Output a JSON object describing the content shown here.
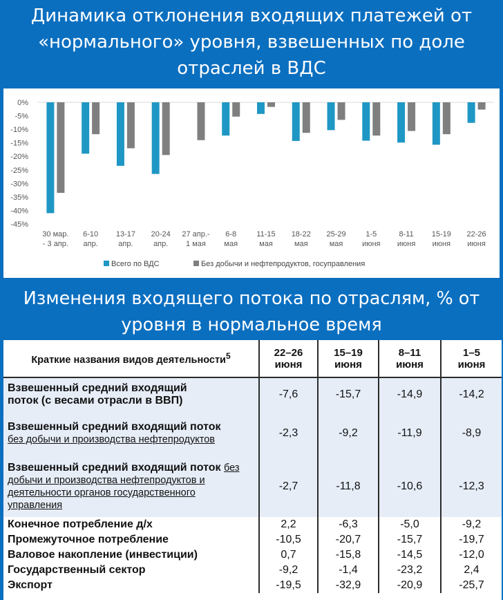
{
  "title1": "Динамика отклонения входящих платежей от «нормального» уровня, взвешенных по доле отраслей в ВДС",
  "title2": "Изменения входящего потока по отраслям, % от уровня в нормальное время",
  "colors": {
    "series1": "#1f97c4",
    "series2": "#7f7f7f",
    "banner": "#0b6fc0",
    "row_shade": "#e6edf7"
  },
  "chart_data": {
    "type": "bar",
    "categories": [
      [
        "30 мар.",
        "- 3 апр."
      ],
      [
        "6-10",
        "апр."
      ],
      [
        "13-17",
        "апр."
      ],
      [
        "20-24",
        "апр."
      ],
      [
        "27 апр.-",
        "1 мая"
      ],
      [
        "6-8",
        "мая"
      ],
      [
        "11-15",
        "мая"
      ],
      [
        "18-22",
        "мая"
      ],
      [
        "25-29",
        "мая"
      ],
      [
        "1-5",
        "июня"
      ],
      [
        "8-11",
        "июня"
      ],
      [
        "15-19",
        "июня"
      ],
      [
        "22-26",
        "июня"
      ]
    ],
    "series": [
      {
        "name": "Всего по ВДС",
        "values": [
          -41,
          -19,
          -23.5,
          -26.5,
          null,
          -12.3,
          -4.3,
          -14.3,
          -10.3,
          -14.2,
          -14.9,
          -15.7,
          -7.6
        ]
      },
      {
        "name": "Без добычи и нефтепродуктов, госуправления",
        "values": [
          -33.5,
          -11.8,
          -17,
          -19.5,
          -14,
          -5.3,
          -1.7,
          -11.3,
          -6.5,
          -12.3,
          -10.6,
          -11.8,
          -2.7
        ]
      }
    ],
    "yticks": [
      "0%",
      "-5%",
      "-10%",
      "-15%",
      "-20%",
      "-25%",
      "-30%",
      "-35%",
      "-40%",
      "-45%"
    ],
    "ylim": [
      -45,
      0
    ],
    "legend": "bottom"
  },
  "table": {
    "header": {
      "name": "Краткие названия видов деятельности",
      "sup": "5",
      "cols": [
        [
          "22–26",
          "июня"
        ],
        [
          "15–19",
          "июня"
        ],
        [
          "8–11",
          "июня"
        ],
        [
          "1–5",
          "июня"
        ]
      ]
    },
    "rows": [
      {
        "bold": "Взвешенный средний входящий поток (с весами отрасли в ВВП)",
        "sub": "",
        "values": [
          "-7,6",
          "-15,7",
          "-14,9",
          "-14,2"
        ]
      },
      {
        "bold": "Взвешенный средний входящий поток",
        "sub": "без добычи и производства нефтепродуктов",
        "values": [
          "-2,3",
          "-9,2",
          "-11,9",
          "-8,9"
        ]
      },
      {
        "bold": "Взвешенный средний входящий поток",
        "sub": "без добычи и производства нефтепродуктов и деятельности органов государственного управления",
        "values": [
          "-2,7",
          "-11,8",
          "-10,6",
          "-12,3"
        ]
      },
      {
        "bold": "Конечное потребление д/х",
        "sub": "",
        "values": [
          "2,2",
          "-6,3",
          "-5,0",
          "-9,2"
        ]
      },
      {
        "bold": "Промежуточное потребление",
        "sub": "",
        "values": [
          "-10,5",
          "-20,7",
          "-15,7",
          "-19,7"
        ]
      },
      {
        "bold": "Валовое накопление (инвестиции)",
        "sub": "",
        "values": [
          "0,7",
          "-15,8",
          "-14,5",
          "-12,0"
        ]
      },
      {
        "bold": "Государственный сектор",
        "sub": "",
        "values": [
          "-9,2",
          "-1,4",
          "-23,2",
          "2,4"
        ]
      },
      {
        "bold": "Экспорт",
        "sub": "",
        "values": [
          "-19,5",
          "-32,9",
          "-20,9",
          "-25,7"
        ]
      }
    ]
  }
}
